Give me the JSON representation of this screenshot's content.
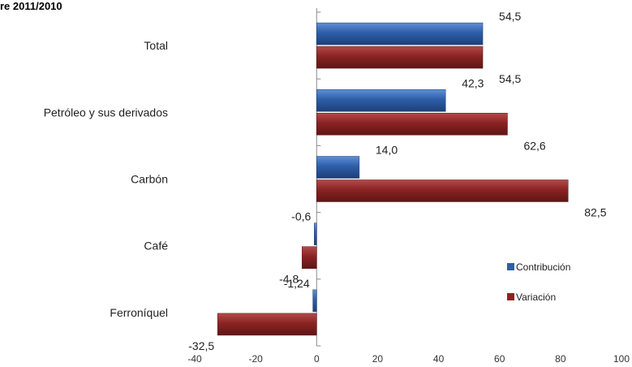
{
  "page": {
    "title_fragment": "re 2011/2010"
  },
  "chart_data": {
    "type": "bar",
    "orientation": "horizontal",
    "categories": [
      "Total",
      "Petróleo y sus derivados",
      "Carbón",
      "Café",
      "Ferroníquel"
    ],
    "series": [
      {
        "name": "Contribución",
        "color": "#2e5ea8",
        "values": [
          54.5,
          42.3,
          14.0,
          -0.6,
          -1.24
        ],
        "labels": [
          "54,5",
          "42,3",
          "14,0",
          "-0,6",
          "-1,24"
        ]
      },
      {
        "name": "Variación",
        "color": "#8b2323",
        "values": [
          54.5,
          62.6,
          82.5,
          -4.8,
          -32.5
        ],
        "labels": [
          "54,5",
          "62,6",
          "82,5",
          "-4,8",
          "-32,5"
        ]
      }
    ],
    "xlim": [
      -40,
      100
    ],
    "xticks": [
      -40,
      -20,
      0,
      20,
      40,
      60,
      80,
      100
    ],
    "legend_position": "right"
  }
}
